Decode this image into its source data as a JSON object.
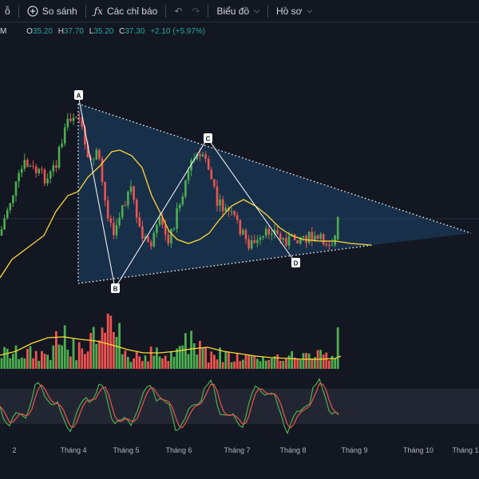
{
  "toolbar": {
    "interval_label": "ỗ",
    "compare_label": "So sánh",
    "indicators_label": "Các chỉ báo",
    "chart_type_label": "Biểu đồ",
    "profile_label": "Hồ sơ"
  },
  "legend": {
    "suffix": "M",
    "open_key": "O",
    "open": "35.20",
    "high_key": "H",
    "high": "37.70",
    "low_key": "L",
    "low": "35.20",
    "close_key": "C",
    "close": "37.30",
    "change": "+2.10 (+5.97%)"
  },
  "pattern_points": [
    "A",
    "B",
    "C",
    "D"
  ],
  "colors": {
    "up": "#4caf50",
    "down": "#ef5350",
    "ma": "#fdd835",
    "pattern_fill": "#1f4e79",
    "pattern_line": "#ffffff",
    "background": "#131722",
    "stoch_k": "#4caf50",
    "stoch_d": "#ef5350"
  },
  "chart_data": {
    "type": "candlestick",
    "x_ticks": [
      "2",
      "Tháng 4",
      "Tháng 5",
      "Tháng 6",
      "Tháng 7",
      "Tháng 8",
      "Tháng 9",
      "Tháng 10",
      "Tháng 1"
    ],
    "last_candle": {
      "open": 35.2,
      "high": 37.7,
      "low": 35.2,
      "close": 37.3,
      "change": 2.1,
      "change_pct": 5.97
    },
    "indicators": [
      "Moving Average",
      "Volume",
      "Volume MA",
      "Stochastic"
    ]
  }
}
